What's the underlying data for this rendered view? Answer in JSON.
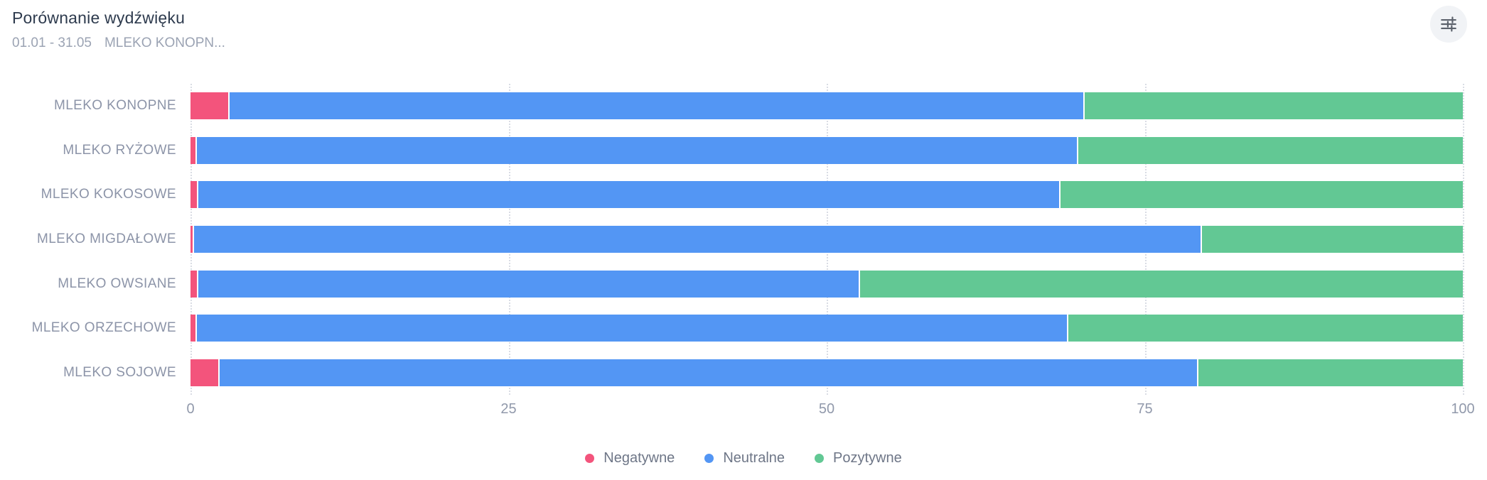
{
  "header": {
    "title": "Porównanie wydźwięku",
    "date_range": "01.01 - 31.05",
    "topics": "MLEKO KONOPN..."
  },
  "toolbar": {
    "settings_icon": "sliders-icon"
  },
  "colors": {
    "negative": "#F3547C",
    "neutral": "#5396F4",
    "positive": "#62C894",
    "gridline": "#D9DCE4",
    "axis_text": "#9199AB",
    "category_text": "#8C94A8",
    "legend_text": "#6E7687",
    "title_text": "#2E3B4E",
    "subtitle_text": "#9BA3B3",
    "button_bg": "#F1F3F6",
    "icon_color": "#5C626C"
  },
  "chart_data": {
    "type": "bar",
    "orientation": "horizontal",
    "stacked": true,
    "unit": "percent",
    "title": "Porównanie wydźwięku",
    "categories": [
      "MLEKO KONOPNE",
      "MLEKO RYŻOWE",
      "MLEKO KOKOSOWE",
      "MLEKO MIGDAŁOWE",
      "MLEKO OWSIANE",
      "MLEKO ORZECHOWE",
      "MLEKO SOJOWE"
    ],
    "series": [
      {
        "name": "Negatywne",
        "color": "#F3547C",
        "values": [
          3.1,
          0.5,
          0.6,
          0.3,
          0.6,
          0.5,
          2.3
        ]
      },
      {
        "name": "Neutralne",
        "color": "#5396F4",
        "values": [
          67.2,
          69.3,
          67.8,
          79.2,
          52.0,
          68.5,
          76.9
        ]
      },
      {
        "name": "Pozytywne",
        "color": "#62C894",
        "values": [
          29.7,
          30.2,
          31.6,
          20.5,
          47.4,
          31.0,
          20.8
        ]
      }
    ],
    "x_ticks": [
      0,
      25,
      50,
      75,
      100
    ],
    "xlim": [
      0,
      100
    ],
    "xlabel": "",
    "ylabel": "",
    "grid": "vertical-dotted",
    "legend_position": "bottom-center"
  }
}
